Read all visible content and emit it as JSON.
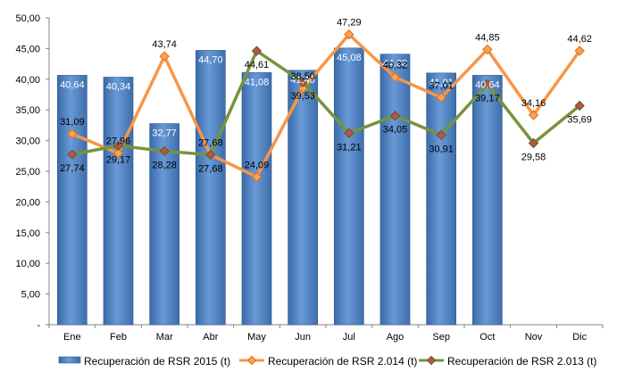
{
  "chart_data": {
    "type": "bar+line",
    "title": "",
    "xlabel": "",
    "ylabel": "",
    "ylim": [
      0,
      50
    ],
    "y_ticks": [
      "-",
      "5,00",
      "10,00",
      "15,00",
      "20,00",
      "25,00",
      "30,00",
      "35,00",
      "40,00",
      "45,00",
      "50,00"
    ],
    "grid": false,
    "legend_position": "bottom",
    "categories": [
      "Ene",
      "Feb",
      "Mar",
      "Abr",
      "May",
      "Jun",
      "Jul",
      "Ago",
      "Sep",
      "Oct",
      "Nov",
      "Dic"
    ],
    "series": [
      {
        "name": "Recuperación de RSR 2015 (t)",
        "kind": "bar",
        "color": "#4f81bd",
        "values": [
          40.64,
          40.34,
          32.77,
          44.7,
          41.08,
          41.45,
          45.08,
          44.08,
          41.01,
          40.64,
          null,
          null
        ],
        "labels": [
          "40,64",
          "40,34",
          "32,77",
          "44,70",
          "41,08",
          "41,45",
          "45,08",
          "44,08",
          "41,01",
          "40,64",
          "",
          ""
        ]
      },
      {
        "name": "Recuperación de RSR 2.014 (t)",
        "kind": "line",
        "color": "#f79646",
        "marker_color": "#f7a35c",
        "values": [
          31.09,
          27.96,
          43.74,
          27.68,
          24.09,
          38.5,
          47.29,
          40.32,
          37.01,
          44.85,
          34.16,
          44.62
        ],
        "labels": [
          "31,09",
          "27,96",
          "43,74",
          "27,68",
          "24,09",
          "38,50",
          "47,29",
          "40,32",
          "37,01",
          "44,85",
          "34,16",
          "44,62"
        ]
      },
      {
        "name": "Recuperación de RSR 2.013 (t)",
        "kind": "line",
        "color": "#77933c",
        "marker_color": "#c0504d",
        "values": [
          27.74,
          29.17,
          28.28,
          27.68,
          44.61,
          39.53,
          31.21,
          34.05,
          30.91,
          39.17,
          29.58,
          35.69
        ],
        "labels": [
          "27,74",
          "29,17",
          "28,28",
          "27,68",
          "44,61",
          "39,53",
          "31,21",
          "34,05",
          "30,91",
          "39,17",
          "29,58",
          "35,69"
        ]
      }
    ]
  }
}
